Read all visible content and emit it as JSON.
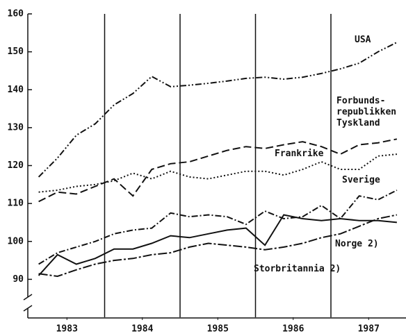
{
  "chart_data": {
    "type": "line",
    "x": [
      1983.125,
      1983.375,
      1983.625,
      1983.875,
      1984.125,
      1984.375,
      1984.625,
      1984.875,
      1985.125,
      1985.375,
      1985.625,
      1985.875,
      1986.125,
      1986.375,
      1986.625,
      1986.875,
      1987.125,
      1987.375,
      1987.625,
      1987.875
    ],
    "series": [
      {
        "name": "USA",
        "color": "#111111",
        "values": [
          117,
          122,
          128,
          131,
          136,
          139,
          143.5,
          140.8,
          141.2,
          141.7,
          142.3,
          143,
          143.3,
          142.8,
          143.3,
          144.3,
          145.5,
          147,
          150,
          152.5
        ]
      },
      {
        "name": "Forbunds-\nrepublikken\nTyskland",
        "color": "#111111",
        "values": [
          110.5,
          113,
          112.5,
          114.5,
          116.5,
          112,
          119,
          120.5,
          121,
          122.5,
          124,
          125,
          124.5,
          125.5,
          126.3,
          125,
          123,
          125.5,
          126,
          127
        ]
      },
      {
        "name": "Frankrike",
        "color": "#111111",
        "values": [
          113,
          113.5,
          114.5,
          115,
          116,
          118,
          116.5,
          118.5,
          117,
          116.5,
          117.5,
          118.5,
          118.5,
          117.5,
          119,
          121,
          119,
          119,
          122.5,
          123
        ]
      },
      {
        "name": "Sverige",
        "color": "#111111",
        "values": [
          94,
          97,
          98.5,
          100,
          102,
          103,
          103.5,
          107.5,
          106.5,
          107,
          106.5,
          104.5,
          108,
          106,
          106.5,
          109.5,
          106,
          112,
          111,
          113.5
        ]
      },
      {
        "name": "Norge 2)",
        "color": "#111111",
        "values": [
          91,
          96.5,
          94,
          95.5,
          98,
          98,
          99.5,
          101.5,
          101,
          102,
          103,
          103.5,
          99,
          107,
          106,
          105.5,
          106,
          105.5,
          105.5,
          105
        ]
      },
      {
        "name": "Storbritannia 2)",
        "color": "#111111",
        "values": [
          91.5,
          90.8,
          92.5,
          94,
          95,
          95.5,
          96.5,
          97,
          98.5,
          99.5,
          99,
          98.5,
          97.8,
          98.5,
          99.5,
          101,
          102,
          104,
          106,
          107
        ]
      }
    ],
    "xlim": [
      1983,
      1988
    ],
    "xticks": [
      {
        "value": 1983.5,
        "label": "1983"
      },
      {
        "value": 1984.5,
        "label": "1984"
      },
      {
        "value": 1985.5,
        "label": "1985"
      },
      {
        "value": 1986.5,
        "label": "1986"
      },
      {
        "value": 1987.5,
        "label": "1987"
      }
    ],
    "xgrid": [
      1984,
      1985,
      1986,
      1987
    ],
    "ylim": [
      80,
      160
    ],
    "yticks": [
      90,
      100,
      110,
      120,
      130,
      140,
      150,
      160
    ]
  }
}
